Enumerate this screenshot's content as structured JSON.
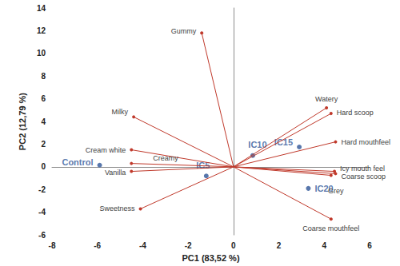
{
  "chart_data": {
    "type": "biplot",
    "x_label": "PC1 (83,52 %)",
    "y_label": "PC2 (12,79 %)",
    "xlim": [
      -8,
      6
    ],
    "xticks": [
      -8,
      -6,
      -4,
      -2,
      0,
      2,
      4,
      6
    ],
    "ylim": [
      -6,
      14
    ],
    "yticks": [
      -6,
      -4,
      -2,
      0,
      2,
      4,
      6,
      8,
      10,
      12,
      14
    ],
    "grid": false,
    "series": [
      {
        "type": "vector",
        "color": "#c0392b",
        "labels": [
          "Gummy",
          "Milky",
          "Cream white",
          "Creamy",
          "Vanilla",
          "Sweetness",
          "Watery",
          "Hard scoop",
          "Hard mouthfeel",
          "Icy mouth feel",
          "Coarse scoop",
          "Grey",
          "Coarse mouthfeel"
        ],
        "x": [
          -1.4,
          -4.4,
          -4.5,
          -4.5,
          -4.5,
          -4.1,
          4.1,
          4.3,
          4.5,
          4.45,
          4.5,
          4.3,
          4.3
        ],
        "y": [
          11.8,
          4.4,
          1.5,
          0.3,
          -0.4,
          -3.7,
          5.2,
          4.7,
          2.2,
          -0.4,
          -0.6,
          -0.75,
          -4.6
        ]
      },
      {
        "type": "scatter",
        "color": "#2e5597",
        "labels": [
          "Control",
          "IC5",
          "IC10",
          "IC15",
          "IC20"
        ],
        "x": [
          -5.9,
          -1.2,
          0.85,
          2.9,
          3.3
        ],
        "y": [
          0.15,
          -0.8,
          1.0,
          1.75,
          -1.9
        ]
      }
    ]
  }
}
